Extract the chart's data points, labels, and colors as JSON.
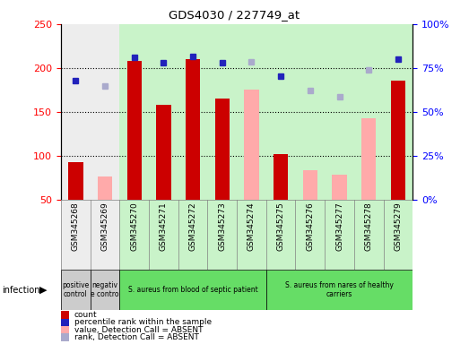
{
  "title": "GDS4030 / 227749_at",
  "samples": [
    "GSM345268",
    "GSM345269",
    "GSM345270",
    "GSM345271",
    "GSM345272",
    "GSM345273",
    "GSM345274",
    "GSM345275",
    "GSM345276",
    "GSM345277",
    "GSM345278",
    "GSM345279"
  ],
  "count_present": [
    93,
    null,
    208,
    158,
    210,
    165,
    null,
    102,
    null,
    null,
    null,
    186
  ],
  "count_absent": [
    null,
    76,
    null,
    null,
    null,
    null,
    175,
    null,
    83,
    78,
    143,
    null
  ],
  "rank_present": [
    186,
    null,
    212,
    206,
    213,
    206,
    null,
    191,
    null,
    null,
    null,
    210
  ],
  "rank_absent": [
    null,
    179,
    null,
    null,
    null,
    null,
    207,
    null,
    174,
    167,
    198,
    null
  ],
  "ylim_left": [
    50,
    250
  ],
  "yticks_left": [
    50,
    100,
    150,
    200,
    250
  ],
  "yticks_right": [
    0,
    25,
    50,
    75,
    100
  ],
  "ytick_labels_right": [
    "0%",
    "25%",
    "50%",
    "75%",
    "100%"
  ],
  "color_count_present": "#cc0000",
  "color_count_absent": "#ffaaaa",
  "color_rank_present": "#2222bb",
  "color_rank_absent": "#aaaacc",
  "group_spans": [
    {
      "label": "positive\ncontrol",
      "start": 0,
      "end": 1,
      "color": "#cccccc"
    },
    {
      "label": "negativ\ne contro",
      "start": 1,
      "end": 2,
      "color": "#cccccc"
    },
    {
      "label": "S. aureus from blood of septic patient",
      "start": 2,
      "end": 7,
      "color": "#66dd66"
    },
    {
      "label": "S. aureus from nares of healthy\ncarriers",
      "start": 7,
      "end": 12,
      "color": "#66dd66"
    }
  ],
  "legend_items": [
    {
      "label": "count",
      "color": "#cc0000"
    },
    {
      "label": "percentile rank within the sample",
      "color": "#2222bb"
    },
    {
      "label": "value, Detection Call = ABSENT",
      "color": "#ffaaaa"
    },
    {
      "label": "rank, Detection Call = ABSENT",
      "color": "#aaaacc"
    }
  ]
}
